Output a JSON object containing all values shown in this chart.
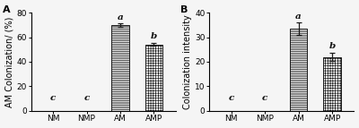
{
  "panel_A": {
    "label": "A",
    "categories": [
      "NM",
      "NMP",
      "AM",
      "AMP"
    ],
    "values": [
      0,
      0,
      70,
      54
    ],
    "errors": [
      0,
      0,
      1.2,
      1.2
    ],
    "sig_labels": [
      "c",
      "c",
      "a",
      "b"
    ],
    "ylabel": "AM Colonization/ (%)",
    "ylim": [
      0,
      80
    ],
    "yticks": [
      0,
      20,
      40,
      60,
      80
    ]
  },
  "panel_B": {
    "label": "B",
    "categories": [
      "NM",
      "NMP",
      "AM",
      "AMP"
    ],
    "values": [
      0,
      0,
      33.5,
      22
    ],
    "errors": [
      0,
      0,
      2.5,
      1.8
    ],
    "sig_labels": [
      "c",
      "c",
      "a",
      "b"
    ],
    "ylabel": "Colonization intensity",
    "ylim": [
      0,
      40
    ],
    "yticks": [
      0,
      10,
      20,
      30,
      40
    ]
  },
  "bar_colors": [
    "#ffffff",
    "#ffffff",
    "#ffffff",
    "#ffffff"
  ],
  "hatch_patterns": [
    "",
    "",
    "----------",
    "++++++"
  ],
  "edge_color": "#1a1a1a",
  "sig_label_fontsize": 7.5,
  "tick_fontsize": 6.5,
  "ylabel_fontsize": 7,
  "panel_label_fontsize": 8,
  "bar_width": 0.52,
  "background_color": "#f5f5f5",
  "error_capsize": 2.5,
  "error_linewidth": 0.9
}
